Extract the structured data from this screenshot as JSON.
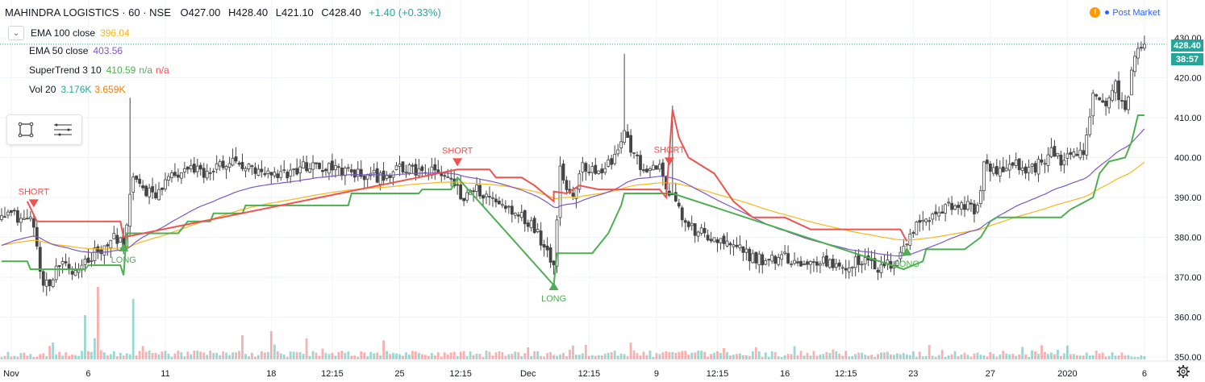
{
  "header": {
    "symbol": "MAHINDRA LOGISTICS · 60 · NSE",
    "open": "O427.00",
    "high": "H428.40",
    "low": "L421.10",
    "close": "C428.40",
    "change": "+1.40 (+0.33%)"
  },
  "status": {
    "label": "Post Market",
    "warn_icon": "!"
  },
  "indicators": [
    {
      "name": "EMA 100 close",
      "values": [
        {
          "text": "396.04",
          "color": "#f5b81a"
        }
      ]
    },
    {
      "name": "EMA 50 close",
      "values": [
        {
          "text": "403.56",
          "color": "#7e57c2"
        }
      ]
    },
    {
      "name": "SuperTrend 3 10",
      "values": [
        {
          "text": "410.59",
          "color": "#4caf50"
        },
        {
          "text": "n/a",
          "color": "#4caf50"
        },
        {
          "text": "n/a",
          "color": "#ef5350"
        }
      ]
    },
    {
      "name": "Vol 20",
      "values": [
        {
          "text": "3.176K",
          "color": "#26a69a"
        },
        {
          "text": "3.659K",
          "color": "#f57c00"
        }
      ]
    }
  ],
  "price_badge": {
    "price": "428.40",
    "countdown": "38:57"
  },
  "colors": {
    "up": "#26a69a",
    "down": "#ef5350",
    "ema100": "#f5b81a",
    "ema50": "#7e57c2",
    "st_up": "#4caf50",
    "st_down": "#ef5350"
  },
  "chart_data": {
    "type": "candlestick",
    "y_axis": {
      "ticks": [
        350,
        360,
        370,
        380,
        390,
        400,
        410,
        420,
        430
      ],
      "range": [
        349,
        432
      ]
    },
    "x_axis": {
      "labels": [
        {
          "text": "Nov",
          "i": 3
        },
        {
          "text": "6",
          "i": 27
        },
        {
          "text": "11",
          "i": 51
        },
        {
          "text": "18",
          "i": 84
        },
        {
          "text": "12:15",
          "i": 103
        },
        {
          "text": "25",
          "i": 124
        },
        {
          "text": "12:15",
          "i": 143
        },
        {
          "text": "Dec",
          "i": 164
        },
        {
          "text": "12:15",
          "i": 183
        },
        {
          "text": "9",
          "i": 204
        },
        {
          "text": "12:15",
          "i": 223
        },
        {
          "text": "16",
          "i": 244
        },
        {
          "text": "12:15",
          "i": 263
        },
        {
          "text": "23",
          "i": 284
        },
        {
          "text": "27",
          "i": 308
        },
        {
          "text": "2020",
          "i": 332
        },
        {
          "text": "6",
          "i": 356
        }
      ]
    },
    "close_anchors": [
      [
        0,
        387
      ],
      [
        5,
        385
      ],
      [
        10,
        384
      ],
      [
        12,
        370
      ],
      [
        15,
        368
      ],
      [
        18,
        373
      ],
      [
        22,
        371
      ],
      [
        26,
        374
      ],
      [
        30,
        377
      ],
      [
        36,
        380
      ],
      [
        38,
        378
      ],
      [
        41,
        395
      ],
      [
        44,
        392
      ],
      [
        48,
        390
      ],
      [
        52,
        395
      ],
      [
        58,
        397
      ],
      [
        64,
        396
      ],
      [
        70,
        399
      ],
      [
        75,
        398
      ],
      [
        80,
        396
      ],
      [
        85,
        395
      ],
      [
        95,
        398
      ],
      [
        105,
        397
      ],
      [
        115,
        395
      ],
      [
        125,
        397
      ],
      [
        135,
        396
      ],
      [
        140,
        395
      ],
      [
        143,
        390
      ],
      [
        148,
        392
      ],
      [
        152,
        390
      ],
      [
        156,
        388
      ],
      [
        162,
        386
      ],
      [
        166,
        382
      ],
      [
        169,
        378
      ],
      [
        172,
        374
      ],
      [
        174,
        397
      ],
      [
        178,
        390
      ],
      [
        181,
        398
      ],
      [
        186,
        397
      ],
      [
        190,
        399
      ],
      [
        194,
        406
      ],
      [
        198,
        399
      ],
      [
        202,
        396
      ],
      [
        205,
        398
      ],
      [
        207,
        393
      ],
      [
        209,
        390
      ],
      [
        212,
        385
      ],
      [
        215,
        382
      ],
      [
        220,
        380
      ],
      [
        226,
        378
      ],
      [
        232,
        376
      ],
      [
        238,
        374
      ],
      [
        244,
        375
      ],
      [
        250,
        373
      ],
      [
        256,
        374
      ],
      [
        262,
        373
      ],
      [
        268,
        374
      ],
      [
        274,
        372
      ],
      [
        278,
        374
      ],
      [
        282,
        379
      ],
      [
        286,
        384
      ],
      [
        290,
        386
      ],
      [
        296,
        388
      ],
      [
        300,
        388
      ],
      [
        304,
        387
      ],
      [
        306,
        399
      ],
      [
        310,
        396
      ],
      [
        316,
        398
      ],
      [
        322,
        397
      ],
      [
        327,
        402
      ],
      [
        330,
        399
      ],
      [
        334,
        400
      ],
      [
        337,
        401
      ],
      [
        340,
        415
      ],
      [
        344,
        413
      ],
      [
        347,
        418
      ],
      [
        350,
        412
      ],
      [
        353,
        426
      ],
      [
        356,
        428.4
      ]
    ],
    "supertrend": {
      "up": [
        [
          0,
          374
        ],
        [
          8,
          374
        ],
        [
          9,
          372
        ],
        [
          26,
          372
        ],
        [
          27,
          373
        ],
        [
          37,
          373
        ],
        [
          38,
          370.5
        ],
        [
          39,
          381
        ],
        [
          55,
          381
        ],
        [
          58,
          384
        ],
        [
          65,
          384
        ],
        [
          66,
          386
        ],
        [
          75,
          386
        ],
        [
          76,
          388
        ],
        [
          108,
          388
        ],
        [
          109,
          391
        ],
        [
          130,
          391
        ],
        [
          131,
          392
        ],
        [
          140,
          392
        ],
        [
          142,
          395
        ],
        [
          172,
          368
        ],
        [
          173,
          376
        ],
        [
          184,
          376
        ],
        [
          189,
          381
        ],
        [
          193,
          388
        ],
        [
          194,
          391
        ],
        [
          209,
          391
        ],
        [
          281,
          372
        ],
        [
          287,
          374
        ],
        [
          288,
          377
        ],
        [
          300,
          377
        ],
        [
          305,
          380
        ],
        [
          308,
          384
        ],
        [
          310,
          385
        ],
        [
          330,
          385
        ],
        [
          333,
          387
        ],
        [
          340,
          390
        ],
        [
          342,
          396
        ],
        [
          345,
          399
        ],
        [
          350,
          400
        ],
        [
          352,
          404
        ],
        [
          354,
          410.6
        ],
        [
          356,
          410.6
        ]
      ],
      "down": [
        [
          8,
          389
        ],
        [
          11,
          384
        ],
        [
          37,
          384
        ],
        [
          38,
          380
        ],
        [
          142,
          397
        ],
        [
          152,
          397
        ],
        [
          154,
          395
        ],
        [
          162,
          395
        ],
        [
          166,
          393
        ],
        [
          172,
          389
        ],
        [
          172,
          391.5
        ],
        [
          176,
          391
        ],
        [
          180,
          393
        ],
        [
          186,
          392
        ],
        [
          190,
          392
        ],
        [
          194,
          392
        ],
        [
          205,
          392
        ],
        [
          207,
          390
        ],
        [
          209,
          412
        ],
        [
          211,
          405
        ],
        [
          214,
          400
        ],
        [
          222,
          396
        ],
        [
          228,
          389
        ],
        [
          234,
          385
        ],
        [
          244,
          385
        ],
        [
          252,
          382
        ],
        [
          280,
          382
        ],
        [
          282,
          379
        ]
      ]
    },
    "signals": [
      {
        "type": "SHORT",
        "i": 10,
        "price": 387.5
      },
      {
        "type": "LONG",
        "i": 38,
        "price": 378.5
      },
      {
        "type": "SHORT",
        "i": 142,
        "price": 397.8
      },
      {
        "type": "LONG",
        "i": 172,
        "price": 368.8
      },
      {
        "type": "SHORT",
        "i": 208,
        "price": 398
      },
      {
        "type": "LONG",
        "i": 282,
        "price": 377.5
      }
    ],
    "spikes": [
      {
        "i": 40,
        "high": 415
      },
      {
        "i": 194,
        "high": 426
      },
      {
        "i": 209,
        "high": 413
      }
    ]
  }
}
